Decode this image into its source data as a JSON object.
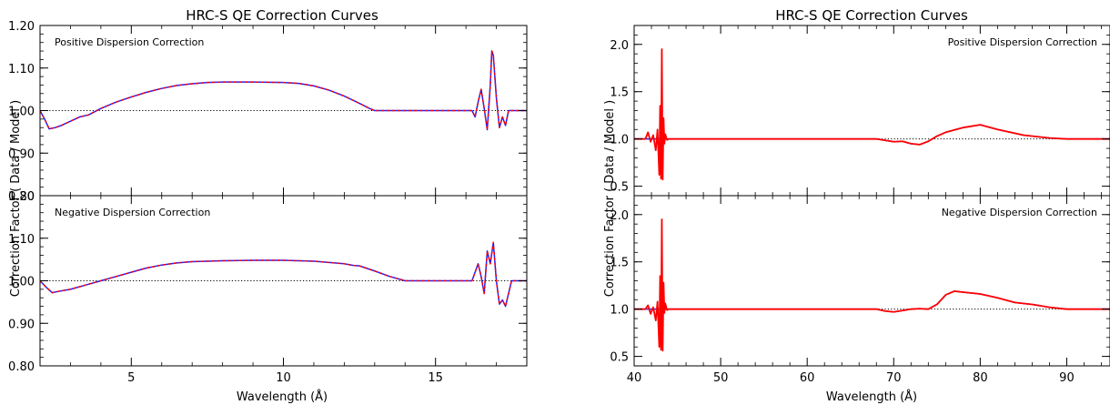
{
  "figure": {
    "left_title": "HRC-S QE Correction Curves",
    "right_title": "HRC-S QE Correction Curves",
    "left_ylabel": "Correction Factor ( Data / Model )",
    "right_ylabel": "Correction Factor ( Data / Model )",
    "left_xlabel": "Wavelength (Å)",
    "right_xlabel": "Wavelength (Å)"
  },
  "colors": {
    "curve_a": "#2020ff",
    "curve_b": "#ff0000",
    "reference": "#000000",
    "frame": "#000000"
  },
  "chart_data": [
    {
      "type": "line",
      "panel": "left-top",
      "title": "HRC-S QE Correction Curves",
      "annotation": "Positive Dispersion Correction",
      "xlabel": "",
      "ylabel": "",
      "xlim": [
        2,
        18
      ],
      "ylim": [
        0.8,
        1.2
      ],
      "xticks": [],
      "yticks": [
        0.8,
        0.9,
        1.0,
        1.1,
        1.2
      ],
      "ytick_labels": [
        "0.80",
        "0.90",
        "1.00",
        "1.10",
        "1.20"
      ],
      "reference_line": 1.0,
      "series": [
        {
          "style": "solid-blue",
          "x": [
            2,
            2.15,
            2.3,
            2.5,
            2.7,
            3,
            3.3,
            3.6,
            4,
            4.5,
            5,
            5.5,
            6,
            6.5,
            7,
            7.5,
            8,
            9,
            10,
            10.5,
            11,
            11.5,
            12,
            12.5,
            12.8,
            13,
            14,
            15,
            16,
            16.2,
            16.3,
            16.4,
            16.5,
            16.6,
            16.7,
            16.8,
            16.85,
            16.9,
            17,
            17.1,
            17.2,
            17.3,
            17.4,
            17.6,
            18
          ],
          "y": [
            1.0,
            0.98,
            0.957,
            0.96,
            0.965,
            0.975,
            0.985,
            0.99,
            1.005,
            1.02,
            1.032,
            1.043,
            1.052,
            1.059,
            1.063,
            1.066,
            1.067,
            1.067,
            1.066,
            1.064,
            1.058,
            1.048,
            1.034,
            1.017,
            1.006,
            1.0,
            1.0,
            1.0,
            1.0,
            1.0,
            0.985,
            1.02,
            1.05,
            1.005,
            0.955,
            1.06,
            1.14,
            1.13,
            1.03,
            0.96,
            0.985,
            0.965,
            1.0,
            1.0,
            1.0
          ]
        },
        {
          "style": "dashed-red",
          "x": [
            2,
            2.15,
            2.3,
            2.5,
            2.7,
            3,
            3.3,
            3.6,
            4,
            4.5,
            5,
            5.5,
            6,
            6.5,
            7,
            7.5,
            8,
            9,
            10,
            10.5,
            11,
            11.5,
            12,
            12.5,
            12.8,
            13,
            14,
            15,
            16,
            16.2,
            16.3,
            16.4,
            16.5,
            16.6,
            16.7,
            16.8,
            16.85,
            16.9,
            17,
            17.1,
            17.2,
            17.3,
            17.4,
            17.6,
            18
          ],
          "y": [
            1.0,
            0.98,
            0.957,
            0.96,
            0.965,
            0.975,
            0.985,
            0.99,
            1.005,
            1.02,
            1.032,
            1.043,
            1.052,
            1.059,
            1.063,
            1.066,
            1.067,
            1.067,
            1.066,
            1.064,
            1.058,
            1.048,
            1.034,
            1.017,
            1.006,
            1.0,
            1.0,
            1.0,
            1.0,
            1.0,
            0.985,
            1.02,
            1.05,
            1.005,
            0.955,
            1.06,
            1.14,
            1.13,
            1.03,
            0.96,
            0.985,
            0.965,
            1.0,
            1.0,
            1.0
          ]
        }
      ]
    },
    {
      "type": "line",
      "panel": "left-bottom",
      "annotation": "Negative Dispersion Correction",
      "xlabel": "Wavelength (Å)",
      "ylabel": "Correction Factor ( Data / Model )",
      "xlim": [
        2,
        18
      ],
      "ylim": [
        0.8,
        1.2
      ],
      "xticks": [
        5,
        10,
        15
      ],
      "xtick_labels": [
        "5",
        "10",
        "15"
      ],
      "yticks": [
        0.8,
        0.9,
        1.0,
        1.1,
        1.2
      ],
      "ytick_labels": [
        "0.80",
        "0.90",
        "1.00",
        "1.10",
        "1.20"
      ],
      "reference_line": 1.0,
      "series": [
        {
          "style": "solid-blue",
          "x": [
            2,
            2.2,
            2.4,
            2.6,
            3,
            3.5,
            4,
            4.5,
            5,
            5.5,
            6,
            6.5,
            7,
            8,
            9,
            10,
            11,
            12,
            12.3,
            12.5,
            13,
            13.5,
            14,
            15,
            16,
            16.2,
            16.3,
            16.4,
            16.5,
            16.6,
            16.7,
            16.8,
            16.9,
            17,
            17.1,
            17.2,
            17.3,
            17.5,
            18
          ],
          "y": [
            1.0,
            0.985,
            0.972,
            0.975,
            0.98,
            0.99,
            1.0,
            1.01,
            1.02,
            1.03,
            1.037,
            1.042,
            1.045,
            1.047,
            1.048,
            1.048,
            1.046,
            1.04,
            1.036,
            1.035,
            1.023,
            1.01,
            1.0,
            1.0,
            1.0,
            1.0,
            1.02,
            1.04,
            1.01,
            0.97,
            1.07,
            1.04,
            1.09,
            1.0,
            0.945,
            0.955,
            0.94,
            1.0,
            1.0
          ]
        },
        {
          "style": "dashed-red",
          "x": [
            2,
            2.2,
            2.4,
            2.6,
            3,
            3.5,
            4,
            4.5,
            5,
            5.5,
            6,
            6.5,
            7,
            8,
            9,
            10,
            11,
            12,
            12.3,
            12.5,
            13,
            13.5,
            14,
            15,
            16,
            16.2,
            16.3,
            16.4,
            16.5,
            16.6,
            16.7,
            16.8,
            16.9,
            17,
            17.1,
            17.2,
            17.3,
            17.5,
            18
          ],
          "y": [
            1.0,
            0.985,
            0.972,
            0.975,
            0.98,
            0.99,
            1.0,
            1.01,
            1.02,
            1.03,
            1.037,
            1.042,
            1.045,
            1.047,
            1.048,
            1.048,
            1.046,
            1.04,
            1.036,
            1.035,
            1.023,
            1.01,
            1.0,
            1.0,
            1.0,
            1.0,
            1.02,
            1.04,
            1.01,
            0.97,
            1.07,
            1.04,
            1.09,
            1.0,
            0.945,
            0.955,
            0.94,
            1.0,
            1.0
          ]
        }
      ]
    },
    {
      "type": "line",
      "panel": "right-top",
      "title": "HRC-S QE Correction Curves",
      "annotation": "Positive Dispersion Correction",
      "xlabel": "",
      "ylabel": "",
      "xlim": [
        40,
        95
      ],
      "ylim": [
        0.4,
        2.2
      ],
      "xticks": [],
      "yticks": [
        0.5,
        1.0,
        1.5,
        2.0
      ],
      "ytick_labels": [
        "0.5",
        "1.0",
        "1.5",
        "2.0"
      ],
      "reference_line": 1.0,
      "series": [
        {
          "style": "solid-blue",
          "x": [
            40,
            42,
            44,
            50,
            60,
            68,
            70,
            71,
            72,
            73,
            74,
            75,
            76,
            78,
            80,
            82,
            85,
            88,
            90,
            92,
            95
          ],
          "y": [
            1.0,
            1.0,
            1.0,
            1.0,
            1.0,
            1.0,
            0.97,
            0.975,
            0.95,
            0.94,
            0.975,
            1.03,
            1.07,
            1.12,
            1.15,
            1.1,
            1.04,
            1.01,
            1.0,
            1.0,
            1.0
          ]
        },
        {
          "style": "solid-red",
          "x": [
            40,
            41.3,
            41.6,
            41.9,
            42.2,
            42.5,
            42.7,
            42.9,
            43.0,
            43.1,
            43.2,
            43.3,
            43.4,
            43.5,
            43.6,
            43.8,
            44,
            45,
            50,
            60,
            68,
            70,
            71,
            72,
            73,
            74,
            75,
            76,
            78,
            80,
            82,
            85,
            88,
            90,
            92,
            95
          ],
          "y": [
            1.0,
            1.0,
            1.07,
            0.97,
            1.04,
            0.88,
            1.1,
            0.62,
            1.35,
            0.58,
            1.95,
            0.57,
            1.22,
            0.95,
            1.05,
            0.99,
            1.0,
            1.0,
            1.0,
            1.0,
            1.0,
            0.97,
            0.975,
            0.95,
            0.94,
            0.975,
            1.03,
            1.07,
            1.12,
            1.15,
            1.1,
            1.04,
            1.01,
            1.0,
            1.0,
            1.0
          ]
        }
      ]
    },
    {
      "type": "line",
      "panel": "right-bottom",
      "annotation": "Negative Dispersion Correction",
      "xlabel": "Wavelength (Å)",
      "ylabel": "Correction Factor ( Data / Model )",
      "xlim": [
        40,
        95
      ],
      "ylim": [
        0.4,
        2.2
      ],
      "xticks": [
        40,
        50,
        60,
        70,
        80,
        90
      ],
      "xtick_labels": [
        "40",
        "50",
        "60",
        "70",
        "80",
        "90"
      ],
      "yticks": [
        0.5,
        1.0,
        1.5,
        2.0
      ],
      "ytick_labels": [
        "0.5",
        "1.0",
        "1.5",
        "2.0"
      ],
      "reference_line": 1.0,
      "series": [
        {
          "style": "solid-blue",
          "x": [
            40,
            42,
            44,
            50,
            60,
            68,
            69,
            70,
            71,
            72,
            73,
            74,
            75,
            76,
            77,
            78,
            80,
            82,
            84,
            86,
            88,
            90,
            95
          ],
          "y": [
            1.0,
            1.0,
            1.0,
            1.0,
            1.0,
            1.0,
            0.98,
            0.97,
            0.985,
            1.0,
            1.005,
            1.0,
            1.05,
            1.15,
            1.19,
            1.18,
            1.16,
            1.12,
            1.07,
            1.05,
            1.02,
            1.0,
            1.0
          ]
        },
        {
          "style": "solid-red",
          "x": [
            40,
            41.3,
            41.6,
            41.9,
            42.2,
            42.5,
            42.7,
            42.9,
            43.0,
            43.1,
            43.2,
            43.3,
            43.4,
            43.5,
            43.6,
            43.8,
            44,
            45,
            50,
            60,
            68,
            69,
            70,
            71,
            72,
            73,
            74,
            75,
            76,
            77,
            78,
            80,
            82,
            84,
            86,
            88,
            90,
            95
          ],
          "y": [
            1.0,
            1.0,
            1.04,
            0.95,
            1.02,
            0.88,
            1.08,
            0.6,
            1.35,
            0.57,
            1.95,
            0.56,
            1.28,
            0.96,
            1.06,
            0.99,
            1.0,
            1.0,
            1.0,
            1.0,
            1.0,
            0.98,
            0.97,
            0.985,
            1.0,
            1.005,
            1.0,
            1.05,
            1.15,
            1.19,
            1.18,
            1.16,
            1.12,
            1.07,
            1.05,
            1.02,
            1.0,
            1.0
          ]
        }
      ]
    }
  ]
}
